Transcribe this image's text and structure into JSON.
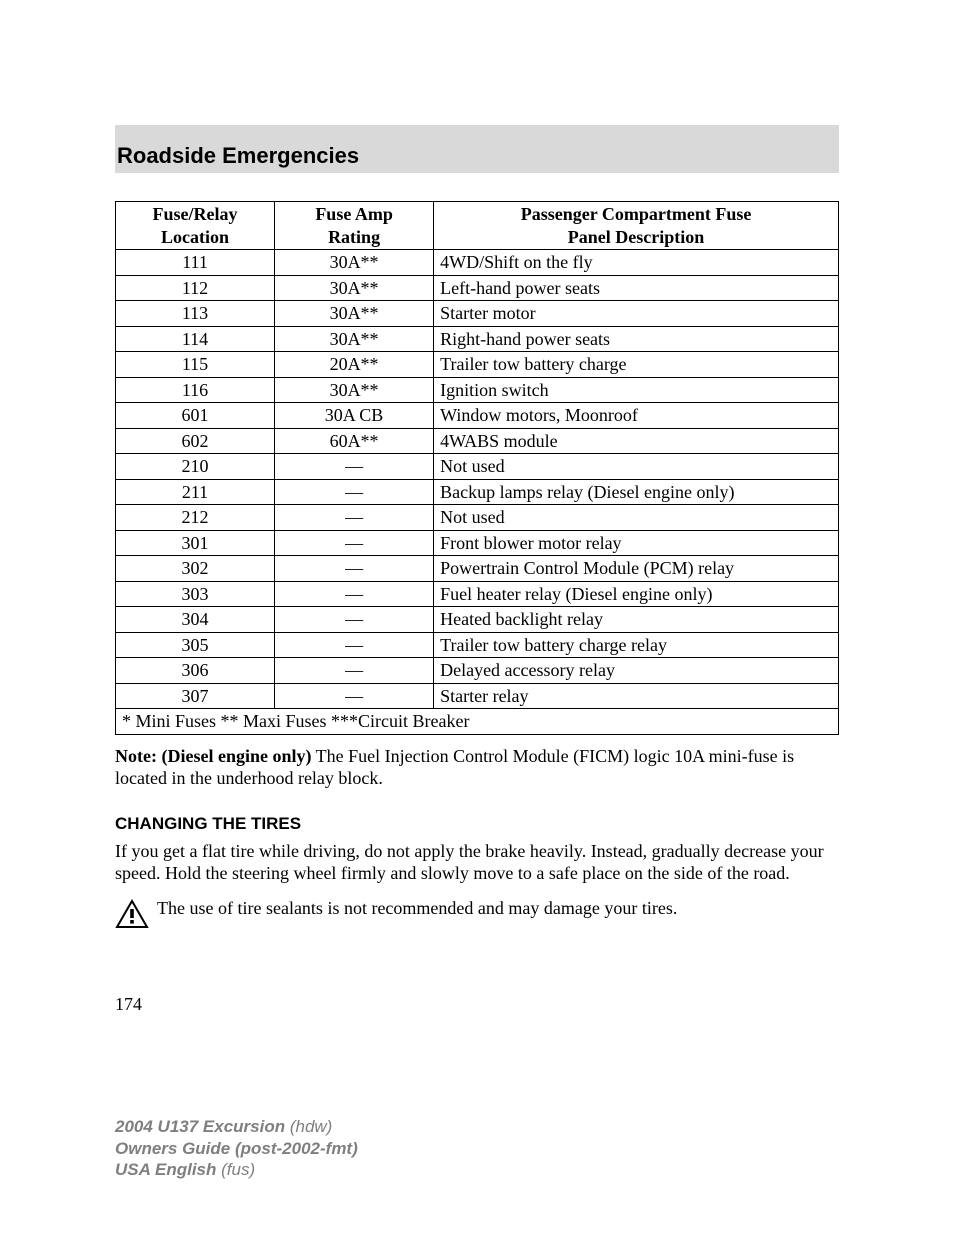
{
  "header": {
    "title": "Roadside Emergencies"
  },
  "table": {
    "headers": {
      "loc_line1": "Fuse/Relay",
      "loc_line2": "Location",
      "rating_line1": "Fuse Amp",
      "rating_line2": "Rating",
      "desc_line1": "Passenger Compartment Fuse",
      "desc_line2": "Panel Description"
    },
    "rows": [
      {
        "loc": "111",
        "rating": "30A**",
        "desc": "4WD/Shift on the fly"
      },
      {
        "loc": "112",
        "rating": "30A**",
        "desc": "Left-hand power seats"
      },
      {
        "loc": "113",
        "rating": "30A**",
        "desc": "Starter motor"
      },
      {
        "loc": "114",
        "rating": "30A**",
        "desc": "Right-hand power seats"
      },
      {
        "loc": "115",
        "rating": "20A**",
        "desc": "Trailer tow battery charge"
      },
      {
        "loc": "116",
        "rating": "30A**",
        "desc": "Ignition switch"
      },
      {
        "loc": "601",
        "rating": "30A CB",
        "desc": "Window motors, Moonroof"
      },
      {
        "loc": "602",
        "rating": "60A**",
        "desc": "4WABS module"
      },
      {
        "loc": "210",
        "rating": "—",
        "desc": "Not used"
      },
      {
        "loc": "211",
        "rating": "—",
        "desc": "Backup lamps relay (Diesel engine only)"
      },
      {
        "loc": "212",
        "rating": "—",
        "desc": "Not used"
      },
      {
        "loc": "301",
        "rating": "—",
        "desc": "Front blower motor relay"
      },
      {
        "loc": "302",
        "rating": "—",
        "desc": "Powertrain Control Module (PCM) relay"
      },
      {
        "loc": "303",
        "rating": "—",
        "desc": "Fuel heater relay (Diesel engine only)"
      },
      {
        "loc": "304",
        "rating": "—",
        "desc": "Heated backlight relay"
      },
      {
        "loc": "305",
        "rating": "—",
        "desc": "Trailer tow battery charge relay"
      },
      {
        "loc": "306",
        "rating": "—",
        "desc": "Delayed accessory relay"
      },
      {
        "loc": "307",
        "rating": "—",
        "desc": "Starter relay"
      }
    ],
    "footer": "* Mini Fuses ** Maxi Fuses ***Circuit Breaker"
  },
  "note": {
    "bold": "Note: (Diesel engine only)",
    "rest": " The Fuel Injection Control Module (FICM) logic 10A mini-fuse is located in the underhood relay block."
  },
  "section_heading": "CHANGING THE TIRES",
  "tire_para": "If you get a flat tire while driving, do not apply the brake heavily. Instead, gradually decrease your speed. Hold the steering wheel firmly and slowly move to a safe place on the side of the road.",
  "warning": {
    "text": "The use of tire sealants is not recommended and may damage your tires."
  },
  "page_number": "174",
  "footer": {
    "l1_bold": "2004 U137 Excursion ",
    "l1_ital": "(hdw)",
    "l2_bold": "Owners Guide (post-2002-fmt)",
    "l3_bold": "USA English ",
    "l3_ital": "(fus)"
  }
}
